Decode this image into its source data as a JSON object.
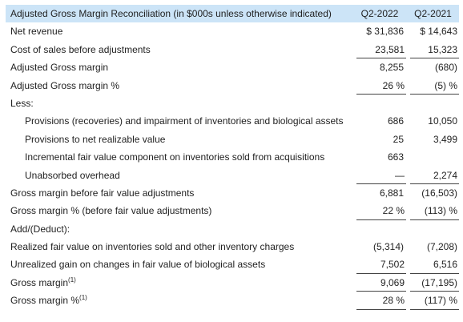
{
  "header": {
    "title": "Adjusted Gross Margin Reconciliation (in $000s unless otherwise indicated)",
    "col1": "Q2-2022",
    "col2": "Q2-2021"
  },
  "rows": [
    {
      "label": "Net revenue",
      "q2_2022": "$ 31,836",
      "q2_2021": "$ 14,643"
    },
    {
      "label": "Cost of sales before adjustments",
      "q2_2022": "23,581",
      "q2_2021": "15,323"
    },
    {
      "label": "Adjusted Gross margin",
      "q2_2022": "8,255",
      "q2_2021": "(680)"
    },
    {
      "label": "Adjusted Gross margin %",
      "q2_2022": "26 %",
      "q2_2021": "(5) %"
    },
    {
      "label": "Less:",
      "q2_2022": "",
      "q2_2021": ""
    },
    {
      "label": "Provisions (recoveries) and impairment of inventories and biological assets",
      "q2_2022": "686",
      "q2_2021": "10,050"
    },
    {
      "label": "Provisions to net realizable value",
      "q2_2022": "25",
      "q2_2021": "3,499"
    },
    {
      "label": "Incremental fair value component on inventories sold from acquisitions",
      "q2_2022": "663",
      "q2_2021": ""
    },
    {
      "label": "Unabsorbed overhead",
      "q2_2022": "—",
      "q2_2021": "2,274"
    },
    {
      "label": "Gross margin before fair value adjustments",
      "q2_2022": "6,881",
      "q2_2021": "(16,503)"
    },
    {
      "label": "Gross margin % (before fair value adjustments)",
      "q2_2022": "22 %",
      "q2_2021": "(113) %"
    },
    {
      "label": "Add/(Deduct):",
      "q2_2022": "",
      "q2_2021": ""
    },
    {
      "label": "Realized fair value on inventories sold and other inventory charges",
      "q2_2022": "(5,314)",
      "q2_2021": "(7,208)"
    },
    {
      "label": "Unrealized gain on changes in fair value of biological assets",
      "q2_2022": "7,502",
      "q2_2021": "6,516"
    },
    {
      "label": "Gross margin",
      "sup": "(1)",
      "q2_2022": "9,069",
      "q2_2021": "(17,195)"
    },
    {
      "label": "Gross margin %",
      "sup": "(1)",
      "q2_2022": "28 %",
      "q2_2021": "(117) %"
    }
  ]
}
